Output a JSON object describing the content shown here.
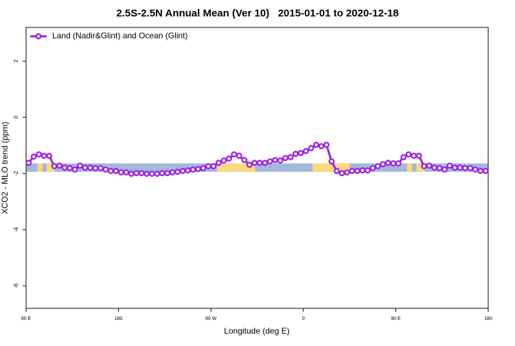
{
  "chart_data": {
    "type": "line",
    "title": "2.5S-2.5N Annual Mean (Ver 10)   2015-01-01 to 2020-12-18",
    "x_label": "Longitude (deg E)",
    "y_label": "XCO2 - MLO trend (ppm)",
    "x": [
      92.5,
      97.5,
      102.5,
      107.5,
      112.5,
      117.5,
      122.5,
      127.5,
      132.5,
      137.5,
      142.5,
      147.5,
      152.5,
      157.5,
      162.5,
      167.5,
      172.5,
      177.5,
      182.5,
      187.5,
      192.5,
      197.5,
      202.5,
      207.5,
      212.5,
      217.5,
      222.5,
      227.5,
      232.5,
      237.5,
      242.5,
      247.5,
      252.5,
      257.5,
      262.5,
      267.5,
      272.5,
      277.5,
      282.5,
      287.5,
      292.5,
      297.5,
      302.5,
      307.5,
      312.5,
      317.5,
      322.5,
      327.5,
      332.5,
      337.5,
      342.5,
      347.5,
      352.5,
      357.5,
      362.5,
      367.5,
      372.5,
      377.5,
      382.5,
      387.5,
      392.5,
      397.5,
      402.5,
      407.5,
      412.5,
      417.5,
      422.5,
      427.5,
      432.5,
      437.5,
      442.5,
      447.5,
      452.5,
      457.5,
      462.5,
      467.5,
      472.5,
      477.5,
      482.5,
      487.5,
      492.5,
      497.5,
      502.5,
      507.5,
      512.5,
      517.5,
      522.5,
      527.5,
      532.5,
      537.5
    ],
    "series": [
      {
        "name": "Land (Nadir&Glint) and Ocean (Glint)",
        "color": "#9b1fe8",
        "values": [
          -1.62,
          -1.4,
          -1.32,
          -1.37,
          -1.37,
          -1.74,
          -1.72,
          -1.79,
          -1.81,
          -1.86,
          -1.72,
          -1.79,
          -1.79,
          -1.81,
          -1.81,
          -1.86,
          -1.91,
          -1.91,
          -1.96,
          -1.96,
          -2.01,
          -1.99,
          -1.99,
          -2.01,
          -2.01,
          -2.01,
          -1.99,
          -1.99,
          -1.96,
          -1.94,
          -1.91,
          -1.89,
          -1.86,
          -1.84,
          -1.81,
          -1.74,
          -1.74,
          -1.62,
          -1.54,
          -1.47,
          -1.32,
          -1.37,
          -1.52,
          -1.69,
          -1.62,
          -1.62,
          -1.62,
          -1.57,
          -1.52,
          -1.54,
          -1.45,
          -1.42,
          -1.3,
          -1.27,
          -1.2,
          -1.1,
          -0.98,
          -1.03,
          -0.98,
          -1.57,
          -1.91,
          -1.99,
          -1.96,
          -1.91,
          -1.91,
          -1.89,
          -1.89,
          -1.81,
          -1.74,
          -1.67,
          -1.62,
          -1.64,
          -1.64,
          -1.42,
          -1.32,
          -1.37,
          -1.37,
          -1.74,
          -1.72,
          -1.79,
          -1.81,
          -1.86,
          -1.72,
          -1.79,
          -1.79,
          -1.81,
          -1.81,
          -1.86,
          -1.91,
          -1.91
        ]
      }
    ],
    "band_ylim": [
      -1.94,
      -1.64
    ],
    "ocean_color": "#a3b8d9",
    "land_color": "#fdd87c",
    "land_ranges": [
      [
        101,
        106
      ],
      [
        110,
        118
      ],
      [
        276,
        313
      ],
      [
        369,
        405
      ],
      [
        461,
        466
      ],
      [
        470,
        478
      ]
    ],
    "xlim": [
      90,
      540
    ],
    "ylim": [
      -6.8,
      3.2
    ],
    "xticks": [
      {
        "value": 90,
        "label": "90 E"
      },
      180,
      {
        "value": 270,
        "label": "90 W"
      },
      {
        "value": 360,
        "label": "0"
      },
      {
        "value": 450,
        "label": "90 E"
      },
      {
        "value": 540,
        "label": "180"
      }
    ],
    "yticks": [
      -6,
      -4,
      -2,
      0,
      2
    ],
    "legend": "top-left"
  }
}
